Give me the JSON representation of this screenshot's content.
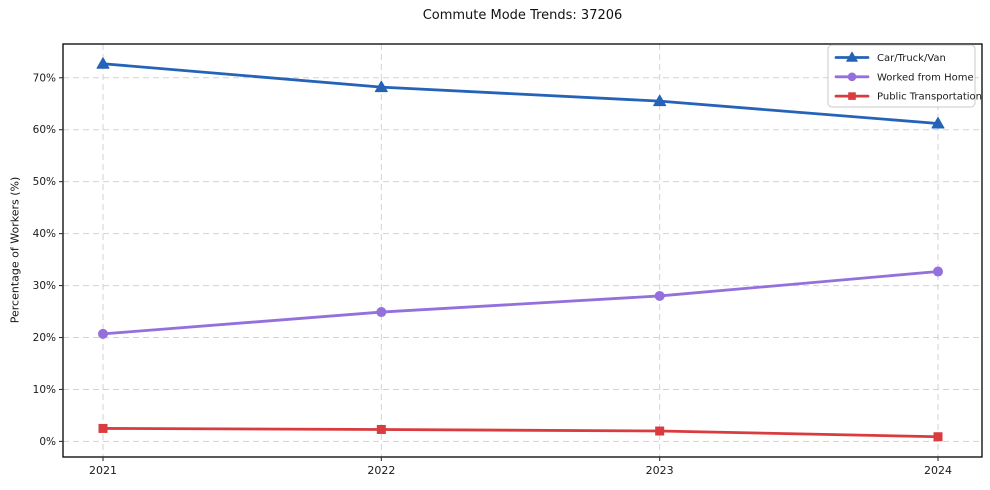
{
  "chart_data": {
    "type": "line",
    "title": "Commute Mode Trends: 37206",
    "xlabel": "",
    "ylabel": "Percentage of Workers (%)",
    "categories": [
      "2021",
      "2022",
      "2023",
      "2024"
    ],
    "y_ticks": [
      0,
      10,
      20,
      30,
      40,
      50,
      60,
      70
    ],
    "y_tick_labels": [
      "0%",
      "10%",
      "20%",
      "30%",
      "40%",
      "50%",
      "60%",
      "70%"
    ],
    "ylim": [
      -3,
      76.5
    ],
    "grid": true,
    "grid_style": "dashed",
    "legend_position": "upper right",
    "series": [
      {
        "name": "Car/Truck/Van",
        "color": "#2563b8",
        "marker": "triangle",
        "values": [
          72.7,
          68.2,
          65.5,
          61.2
        ]
      },
      {
        "name": "Worked from Home",
        "color": "#9370db",
        "marker": "circle",
        "values": [
          20.7,
          24.9,
          28.0,
          32.7
        ]
      },
      {
        "name": "Public Transportation",
        "color": "#d93b3f",
        "marker": "square",
        "values": [
          2.5,
          2.3,
          2.0,
          0.9
        ]
      }
    ]
  },
  "colors": {
    "background": "#ffffff",
    "grid": "#d2d2d2",
    "spine": "#000000",
    "tick": "#333333",
    "text": "#1a1a1a",
    "legend_border": "#c9c9c9"
  }
}
